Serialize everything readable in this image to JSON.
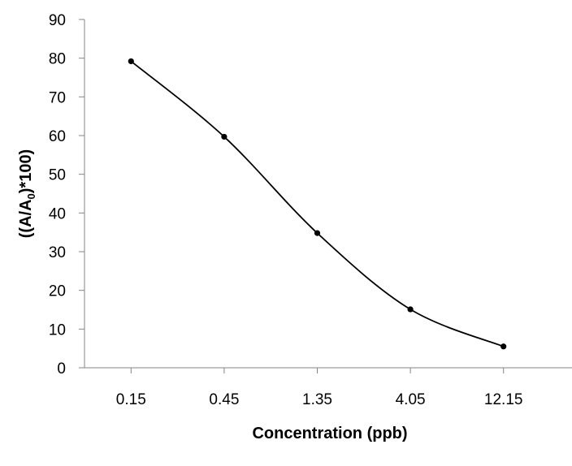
{
  "chart_data": {
    "type": "line",
    "smooth": true,
    "categories": [
      "0.15",
      "0.45",
      "1.35",
      "4.05",
      "12.15"
    ],
    "series": [
      {
        "values": [
          79.2,
          59.7,
          34.8,
          15.1,
          5.5
        ],
        "color": "#000000"
      }
    ],
    "xlabel": "Concentration (ppb)",
    "ylabel": {
      "prefix": "((A/A",
      "subscript": "0",
      "suffix": ")*100)"
    },
    "ylim": [
      0,
      90
    ],
    "yticks": [
      "0",
      "10",
      "20",
      "30",
      "40",
      "50",
      "60",
      "70",
      "80",
      "90"
    ],
    "grid": false,
    "legend": "none"
  }
}
